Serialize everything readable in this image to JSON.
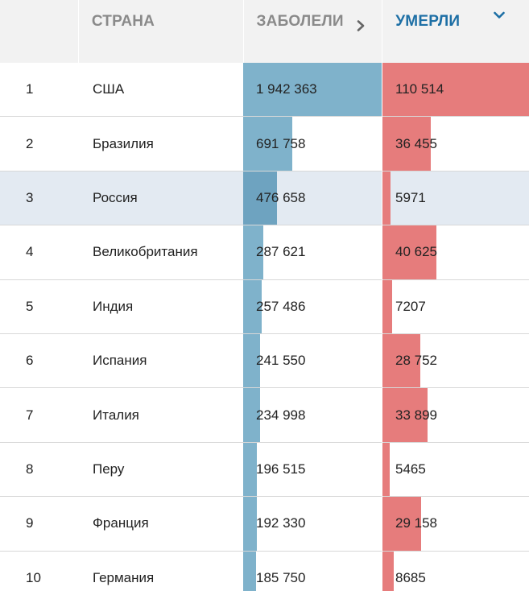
{
  "header": {
    "rank_label": "",
    "country_label": "СТРАНА",
    "cases_label": "ЗАБОЛЕЛИ",
    "deaths_label": "УМЕРЛИ"
  },
  "colors": {
    "cases_bar": "#7fb2cb",
    "deaths_bar": "#e67c7c",
    "active_sort_header": "#1d6fa5",
    "highlight_row": "#e3eaf2"
  },
  "chart_data": {
    "type": "table",
    "columns": [
      "",
      "СТРАНА",
      "ЗАБОЛЕЛИ",
      "УМЕРЛИ"
    ],
    "sorted_by": "УМЕРЛИ",
    "highlighted_row": "Россия",
    "rows": [
      {
        "rank": "1",
        "country": "США",
        "cases": 1942363,
        "cases_text": "1 942 363",
        "deaths": 110514,
        "deaths_text": "110 514"
      },
      {
        "rank": "2",
        "country": "Бразилия",
        "cases": 691758,
        "cases_text": "691 758",
        "deaths": 36455,
        "deaths_text": "36 455"
      },
      {
        "rank": "3",
        "country": "Россия",
        "cases": 476658,
        "cases_text": "476 658",
        "deaths": 5971,
        "deaths_text": "5971"
      },
      {
        "rank": "4",
        "country": "Великобритания",
        "cases": 287621,
        "cases_text": "287 621",
        "deaths": 40625,
        "deaths_text": "40 625"
      },
      {
        "rank": "5",
        "country": "Индия",
        "cases": 257486,
        "cases_text": "257 486",
        "deaths": 7207,
        "deaths_text": "7207"
      },
      {
        "rank": "6",
        "country": "Испания",
        "cases": 241550,
        "cases_text": "241 550",
        "deaths": 28752,
        "deaths_text": "28 752"
      },
      {
        "rank": "7",
        "country": "Италия",
        "cases": 234998,
        "cases_text": "234 998",
        "deaths": 33899,
        "deaths_text": "33 899"
      },
      {
        "rank": "8",
        "country": "Перу",
        "cases": 196515,
        "cases_text": "196 515",
        "deaths": 5465,
        "deaths_text": "5465"
      },
      {
        "rank": "9",
        "country": "Франция",
        "cases": 192330,
        "cases_text": "192 330",
        "deaths": 29158,
        "deaths_text": "29 158"
      },
      {
        "rank": "10",
        "country": "Германия",
        "cases": 185750,
        "cases_text": "185 750",
        "deaths": 8685,
        "deaths_text": "8685"
      }
    ]
  }
}
